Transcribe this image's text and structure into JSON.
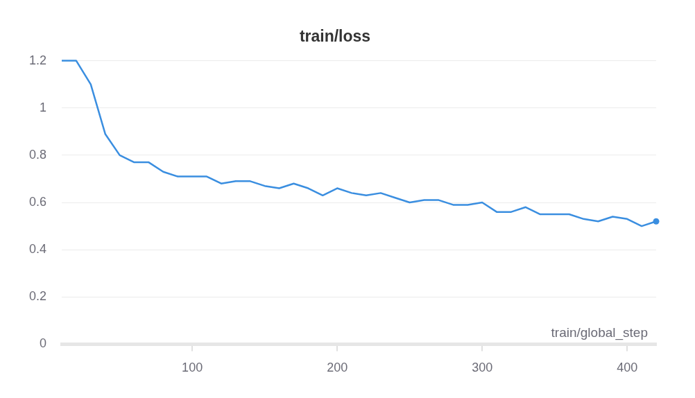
{
  "chart_data": {
    "type": "line",
    "title": "train/loss",
    "xlabel": "train/global_step",
    "x": [
      10,
      20,
      30,
      40,
      50,
      60,
      70,
      80,
      90,
      100,
      110,
      120,
      130,
      140,
      150,
      160,
      170,
      180,
      190,
      200,
      210,
      220,
      230,
      240,
      250,
      260,
      270,
      280,
      290,
      300,
      310,
      320,
      330,
      340,
      350,
      360,
      370,
      380,
      390,
      400,
      410,
      420
    ],
    "series": [
      {
        "color": "#3a8ee0",
        "values": [
          1.2,
          1.2,
          1.1,
          0.89,
          0.8,
          0.77,
          0.77,
          0.73,
          0.71,
          0.71,
          0.71,
          0.68,
          0.69,
          0.69,
          0.67,
          0.66,
          0.68,
          0.66,
          0.63,
          0.66,
          0.64,
          0.63,
          0.64,
          0.62,
          0.6,
          0.61,
          0.61,
          0.59,
          0.59,
          0.6,
          0.56,
          0.56,
          0.58,
          0.55,
          0.55,
          0.55,
          0.53,
          0.52,
          0.54,
          0.53,
          0.5,
          0.52
        ]
      }
    ],
    "xlim": [
      10,
      420
    ],
    "xticks": [
      100,
      200,
      300,
      400
    ],
    "ylim": [
      0,
      1.2
    ],
    "yticks": [
      0,
      0.2,
      0.4,
      0.6,
      0.8,
      1,
      1.2
    ],
    "grid": "y",
    "legend": false,
    "marker": "none",
    "line_style": "solid"
  }
}
